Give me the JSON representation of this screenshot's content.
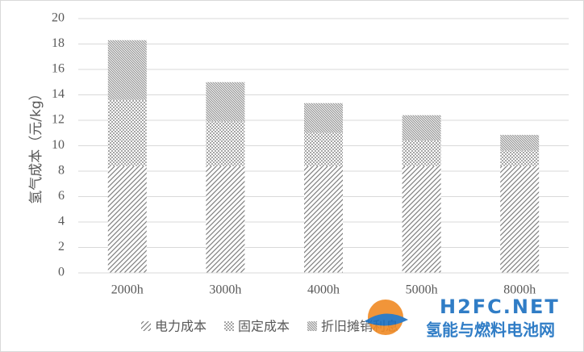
{
  "chart_data": {
    "type": "stacked-bar",
    "y_label": "氢气成本（元/kg）",
    "categories": [
      "2000h",
      "3000h",
      "4000h",
      "5000h",
      "8000h"
    ],
    "series": [
      {
        "name": "电力成本",
        "color": "#7f7f7f",
        "values": [
          8.4,
          8.4,
          8.4,
          8.4,
          8.4
        ]
      },
      {
        "name": "固定成本",
        "color": "#a6a6a6",
        "values": [
          5.2,
          3.5,
          2.6,
          2.0,
          1.2
        ]
      },
      {
        "name": "折旧摊销利息",
        "color": "#8c8c8c",
        "values": [
          4.7,
          3.1,
          2.35,
          2.0,
          1.25
        ]
      }
    ],
    "ylim": [
      0,
      20
    ],
    "yticks": [
      0,
      2,
      4,
      6,
      8,
      10,
      12,
      14,
      16,
      18,
      20
    ],
    "grid": true,
    "legend": "bottom"
  },
  "watermark": {
    "brand": "H2FC.NET",
    "name": "氢能与燃料电池网"
  }
}
